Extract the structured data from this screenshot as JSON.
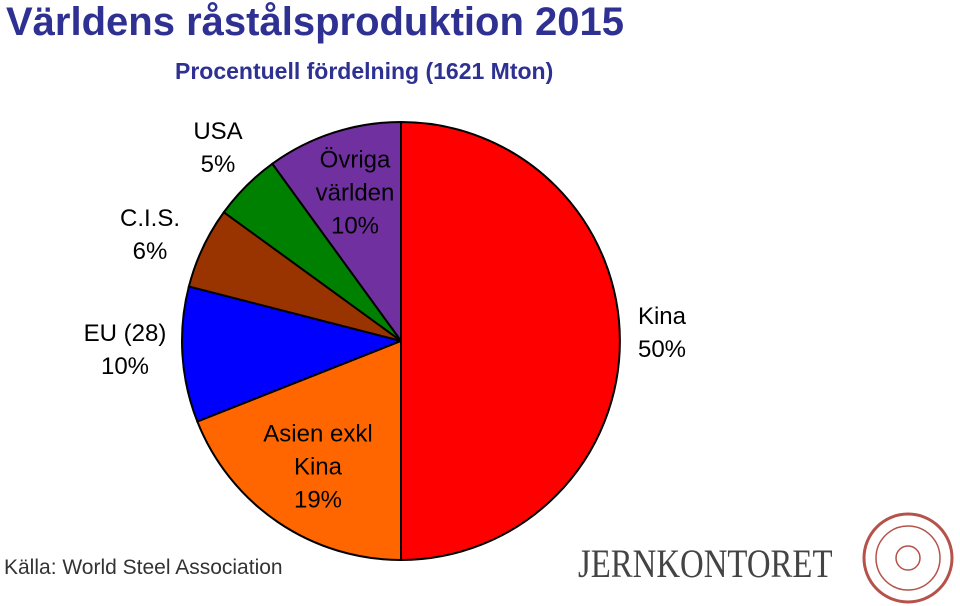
{
  "chart_data": {
    "type": "pie",
    "title": "Världens råstålsproduktion 2015",
    "subtitle": "Procentuell fördelning (1621 Mton)",
    "labels": [
      "Kina",
      "Asien exkl Kina",
      "EU (28)",
      "C.I.S.",
      "USA",
      "Övriga världen"
    ],
    "values": [
      50,
      19,
      10,
      6,
      5,
      10
    ],
    "value_labels": [
      "50%",
      "19%",
      "10%",
      "6%",
      "5%",
      "10%"
    ],
    "colors": [
      "#ff0000",
      "#ff6600",
      "#0000ff",
      "#993300",
      "#008000",
      "#7030a0"
    ],
    "source": "Källa: World Steel Association",
    "logo": "JERNKONTORET"
  }
}
